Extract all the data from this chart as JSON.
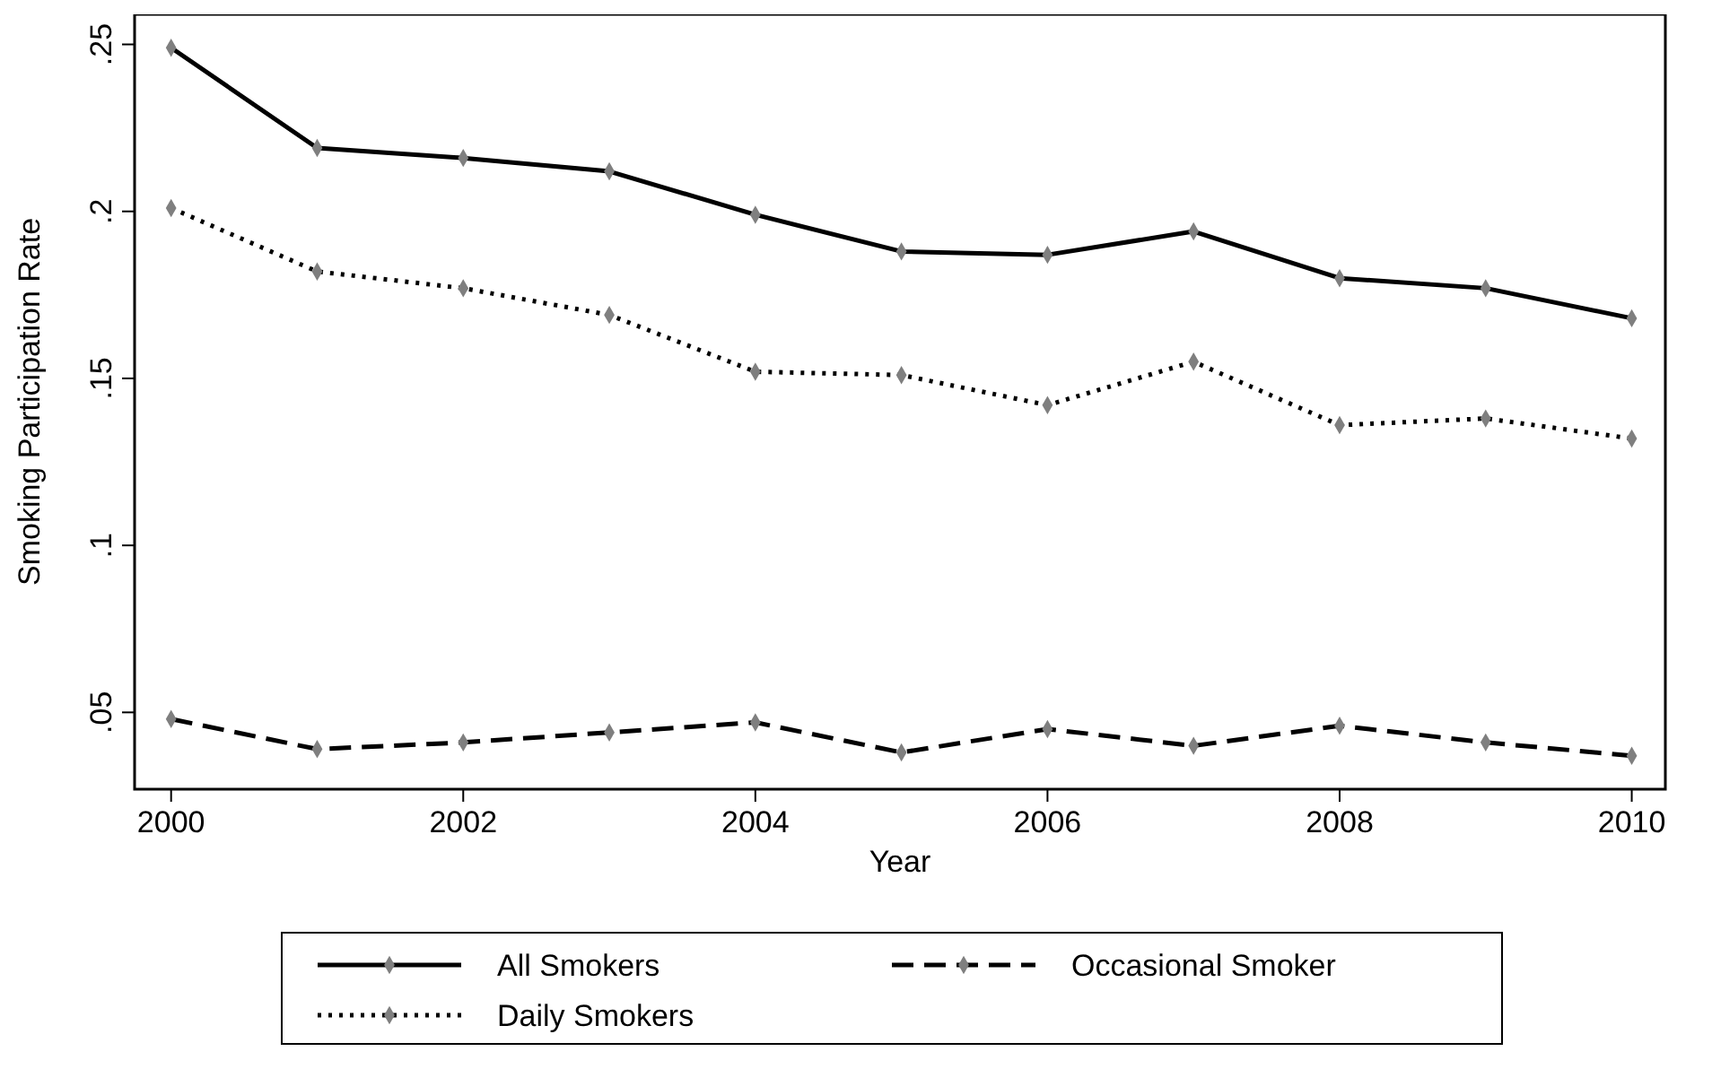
{
  "chart_data": {
    "type": "line",
    "xlabel": "Year",
    "ylabel": "Smoking Participation Rate",
    "x": [
      2000,
      2001,
      2002,
      2003,
      2004,
      2005,
      2006,
      2007,
      2008,
      2009,
      2010
    ],
    "series": [
      {
        "name": "All Smokers",
        "color": "#000000",
        "line_style": "solid",
        "values": [
          0.249,
          0.219,
          0.216,
          0.212,
          0.199,
          0.188,
          0.187,
          0.194,
          0.18,
          0.177,
          0.168
        ]
      },
      {
        "name": "Occasional Smoker",
        "color": "#000000",
        "line_style": "dashed",
        "values": [
          0.048,
          0.039,
          0.041,
          0.044,
          0.047,
          0.038,
          0.045,
          0.04,
          0.046,
          0.041,
          0.037
        ]
      },
      {
        "name": "Daily Smokers",
        "color": "#000000",
        "line_style": "dotted",
        "values": [
          0.201,
          0.182,
          0.177,
          0.169,
          0.152,
          0.151,
          0.142,
          0.155,
          0.136,
          0.138,
          0.132
        ]
      }
    ],
    "xlim": [
      1999.75,
      2010.23
    ],
    "xticks": [
      2000,
      2002,
      2004,
      2006,
      2008,
      2010
    ],
    "ylim": [
      0.027,
      0.259
    ],
    "yticks": [
      {
        "value": 0.05,
        "label": ".05"
      },
      {
        "value": 0.1,
        "label": ".1"
      },
      {
        "value": 0.15,
        "label": ".15"
      },
      {
        "value": 0.2,
        "label": ".2"
      },
      {
        "value": 0.25,
        "label": ".25"
      }
    ],
    "marker": "diamond",
    "grid": false,
    "legend": "bottom"
  }
}
